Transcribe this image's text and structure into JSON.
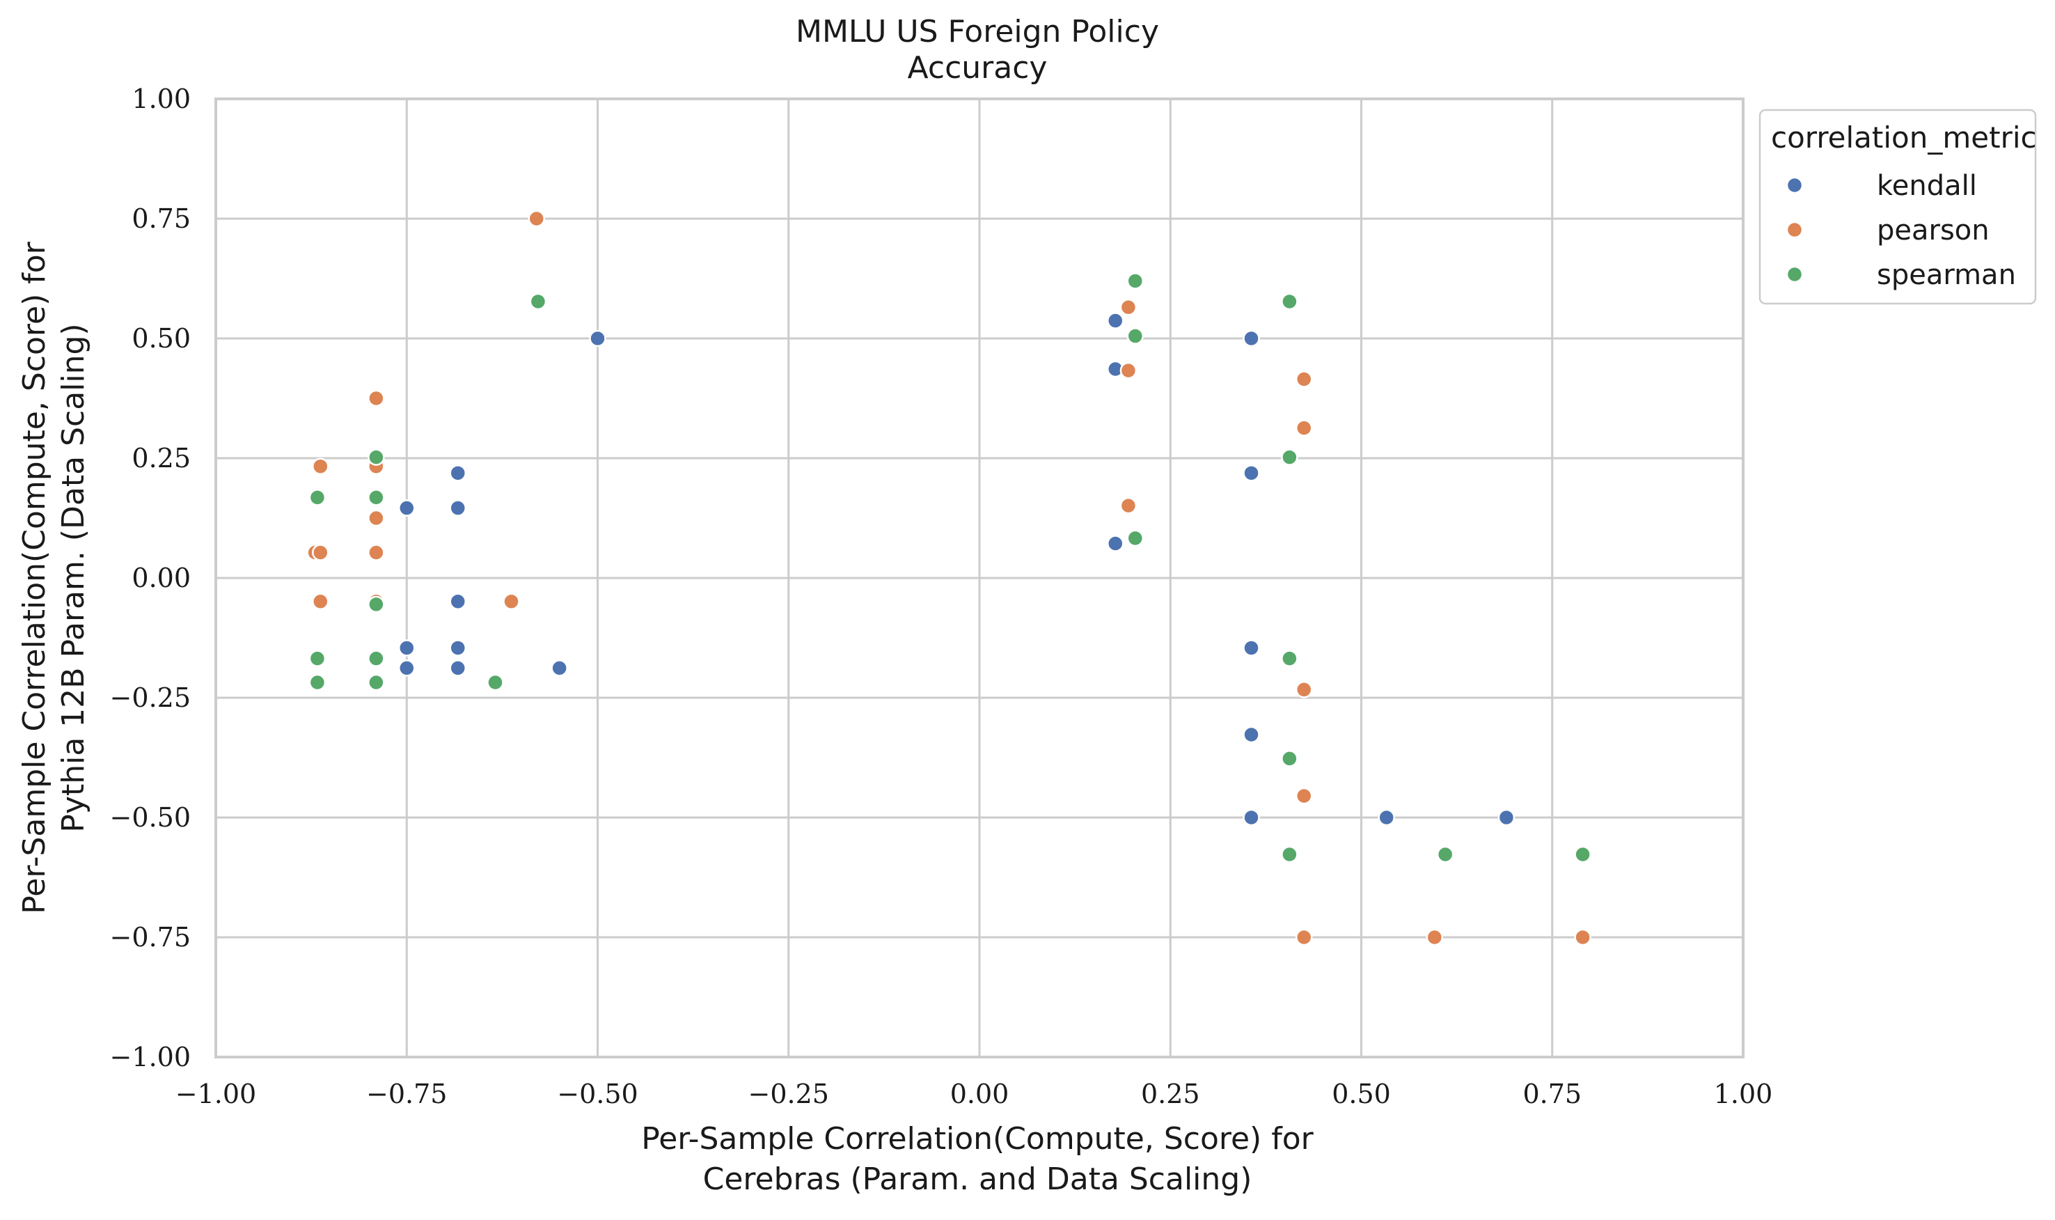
{
  "chart_data": {
    "type": "scatter",
    "title": "MMLU US Foreign Policy",
    "subtitle": "Accuracy",
    "xlabel": [
      "Per-Sample Correlation(Compute, Score) for",
      "Cerebras (Param. and Data Scaling)"
    ],
    "ylabel": [
      "Per-Sample Correlation(Compute, Score) for",
      "Pythia 12B Param. (Data Scaling)"
    ],
    "xlim": [
      -1.0,
      1.0
    ],
    "ylim": [
      -1.0,
      1.0
    ],
    "x_ticks": [
      -1.0,
      -0.75,
      -0.5,
      -0.25,
      0.0,
      0.25,
      0.5,
      0.75,
      1.0
    ],
    "y_ticks": [
      -1.0,
      -0.75,
      -0.5,
      -0.25,
      0.0,
      0.25,
      0.5,
      0.75,
      1.0
    ],
    "x_tick_labels": [
      "−1.00",
      "−0.75",
      "−0.50",
      "−0.25",
      "0.00",
      "0.25",
      "0.50",
      "0.75",
      "1.00"
    ],
    "y_tick_labels": [
      "−1.00",
      "−0.75",
      "−0.50",
      "−0.25",
      "0.00",
      "0.25",
      "0.50",
      "0.75",
      "1.00"
    ],
    "grid": true,
    "legend": {
      "title": "correlation_metric",
      "placement": "outside-top-right"
    },
    "series": [
      {
        "name": "kendall",
        "color": "#4c72b0",
        "points": [
          [
            -0.75,
            0.146
          ],
          [
            -0.683,
            0.219
          ],
          [
            -0.683,
            0.146
          ],
          [
            -0.683,
            -0.049
          ],
          [
            -0.75,
            -0.146
          ],
          [
            -0.683,
            -0.146
          ],
          [
            -0.75,
            -0.188
          ],
          [
            -0.683,
            -0.188
          ],
          [
            -0.55,
            -0.188
          ],
          [
            -0.5,
            0.5
          ],
          [
            0.178,
            0.537
          ],
          [
            0.178,
            0.436
          ],
          [
            0.178,
            0.072
          ],
          [
            0.356,
            0.5
          ],
          [
            0.356,
            0.219
          ],
          [
            0.356,
            -0.146
          ],
          [
            0.356,
            -0.327
          ],
          [
            0.356,
            -0.5
          ],
          [
            0.533,
            -0.5
          ],
          [
            0.69,
            -0.5
          ]
        ]
      },
      {
        "name": "pearson",
        "color": "#dd8452",
        "points": [
          [
            -0.58,
            0.75
          ],
          [
            -0.79,
            0.375
          ],
          [
            -0.863,
            0.233
          ],
          [
            -0.79,
            0.233
          ],
          [
            -0.79,
            0.125
          ],
          [
            -0.87,
            0.053
          ],
          [
            -0.863,
            0.053
          ],
          [
            -0.79,
            0.053
          ],
          [
            -0.863,
            -0.049
          ],
          [
            -0.79,
            -0.049
          ],
          [
            -0.613,
            -0.049
          ],
          [
            0.195,
            0.565
          ],
          [
            0.195,
            0.433
          ],
          [
            0.195,
            0.151
          ],
          [
            0.425,
            0.415
          ],
          [
            0.425,
            0.313
          ],
          [
            0.425,
            -0.233
          ],
          [
            0.425,
            -0.455
          ],
          [
            0.425,
            -0.75
          ],
          [
            0.596,
            -0.75
          ],
          [
            0.79,
            -0.75
          ]
        ]
      },
      {
        "name": "spearman",
        "color": "#55a868",
        "points": [
          [
            -0.578,
            0.577
          ],
          [
            -0.79,
            0.252
          ],
          [
            -0.867,
            0.168
          ],
          [
            -0.79,
            0.168
          ],
          [
            -0.79,
            -0.055
          ],
          [
            -0.867,
            -0.168
          ],
          [
            -0.79,
            -0.168
          ],
          [
            -0.867,
            -0.218
          ],
          [
            -0.79,
            -0.218
          ],
          [
            -0.634,
            -0.218
          ],
          [
            0.204,
            0.62
          ],
          [
            0.204,
            0.505
          ],
          [
            0.204,
            0.083
          ],
          [
            0.406,
            0.577
          ],
          [
            0.406,
            0.252
          ],
          [
            0.406,
            -0.168
          ],
          [
            0.406,
            -0.377
          ],
          [
            0.406,
            -0.577
          ],
          [
            0.61,
            -0.577
          ],
          [
            0.79,
            -0.577
          ]
        ]
      }
    ]
  }
}
